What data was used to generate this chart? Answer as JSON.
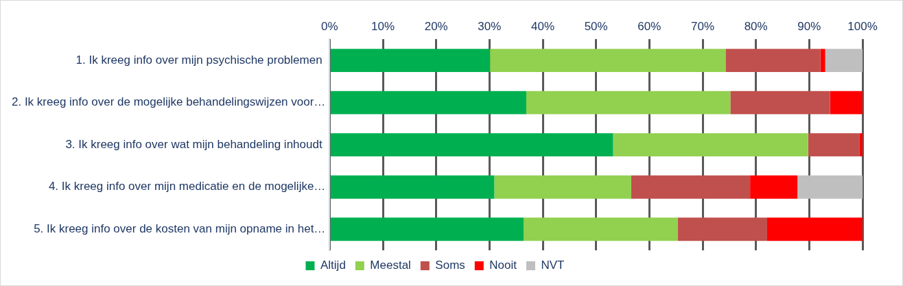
{
  "chart_data": {
    "type": "bar",
    "orientation": "horizontal",
    "stacked": true,
    "categories": [
      "1. Ik kreeg info over mijn psychische problemen ",
      "2. Ik kreeg info over de mogelijke behandelingswijzen voor…",
      "3. Ik kreeg info over wat mijn behandeling inhoudt ",
      "4. Ik kreeg info over mijn medicatie en de mogelijke…",
      "5. Ik kreeg info over de kosten van mijn opname in het…"
    ],
    "series": [
      {
        "name": "Altijd",
        "color": "#00b050",
        "values": [
          30.1,
          36.9,
          53.2,
          30.9,
          36.4
        ]
      },
      {
        "name": "Meestal",
        "color": "#92d050",
        "values": [
          44.2,
          38.3,
          36.6,
          25.7,
          28.9
        ]
      },
      {
        "name": "Soms",
        "color": "#c0504d",
        "values": [
          17.8,
          18.7,
          9.6,
          22.3,
          16.8
        ]
      },
      {
        "name": "Nooit",
        "color": "#ff0000",
        "values": [
          0.9,
          6.1,
          0.6,
          8.9,
          17.9
        ]
      },
      {
        "name": "NVT",
        "color": "#bfbfbf",
        "values": [
          7.0,
          0,
          0,
          12.2,
          0
        ]
      }
    ],
    "xlim": [
      0,
      100
    ],
    "xticks": [
      {
        "value": 0,
        "label": "0%"
      },
      {
        "value": 10,
        "label": "10%"
      },
      {
        "value": 20,
        "label": "20%"
      },
      {
        "value": 30,
        "label": "30%"
      },
      {
        "value": 40,
        "label": "40%"
      },
      {
        "value": 50,
        "label": "50%"
      },
      {
        "value": 60,
        "label": "60%"
      },
      {
        "value": 70,
        "label": "70%"
      },
      {
        "value": 80,
        "label": "80%"
      },
      {
        "value": 90,
        "label": "90%"
      },
      {
        "value": 100,
        "label": "100%"
      }
    ],
    "grid": "x",
    "legend": "bottom"
  }
}
